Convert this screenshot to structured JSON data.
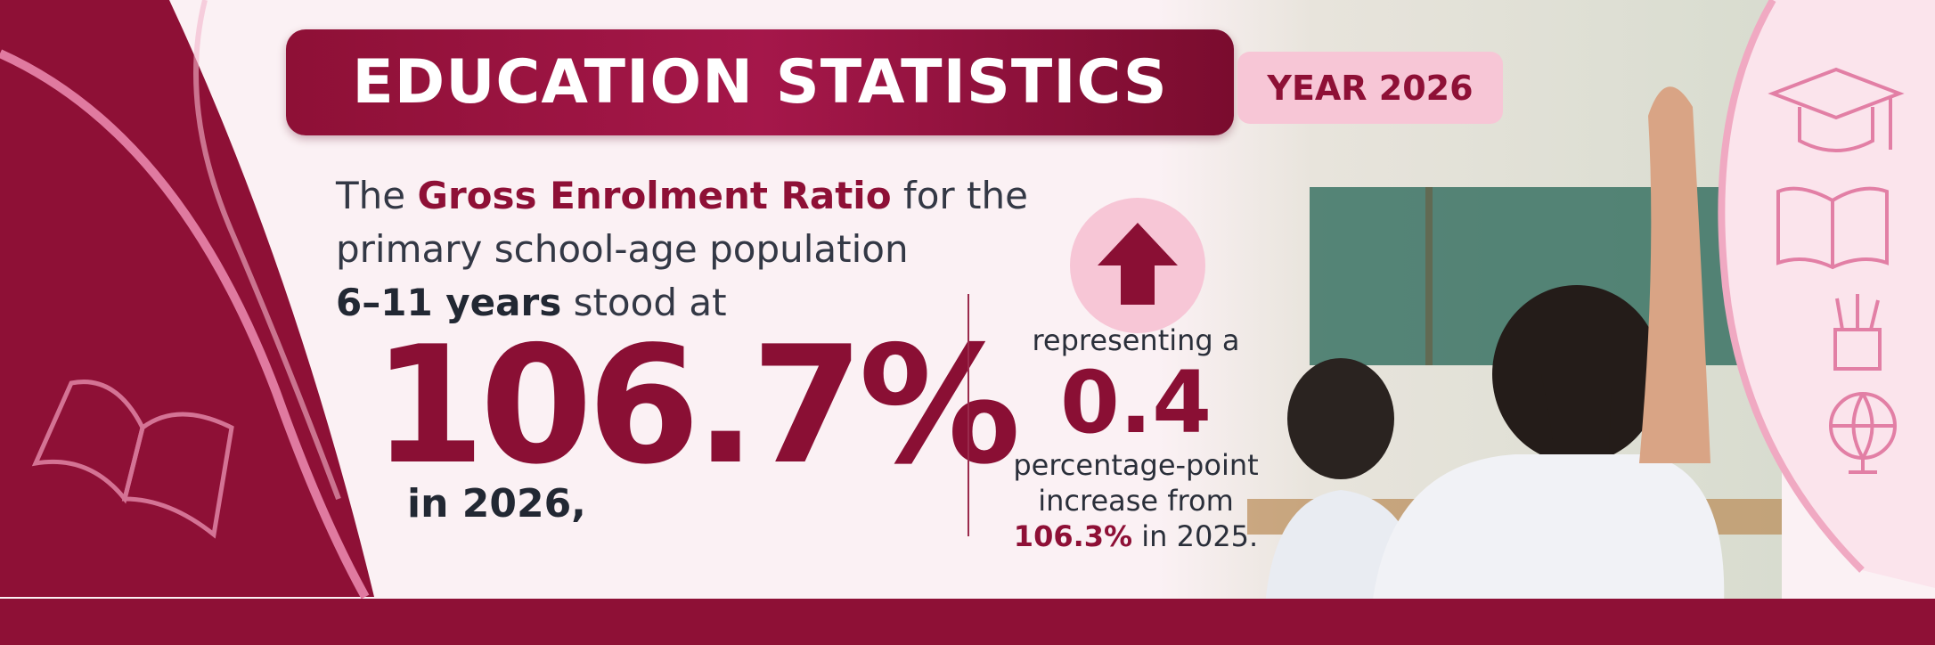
{
  "header": {
    "title": "EDUCATION STATISTICS",
    "badge": "YEAR 2026"
  },
  "main": {
    "intro": [
      "The",
      "Gross Enrolment Ratio",
      "for the",
      "primary school-age population",
      "6–11 years",
      "stood at"
    ],
    "value": "106.7%",
    "year_note": "in 2026,"
  },
  "change": {
    "lead": "representing a",
    "value": "0.4",
    "line1": "percentage-point",
    "line2": "increase from",
    "previous": "106.3%",
    "previous_year": "in 2025."
  }
}
